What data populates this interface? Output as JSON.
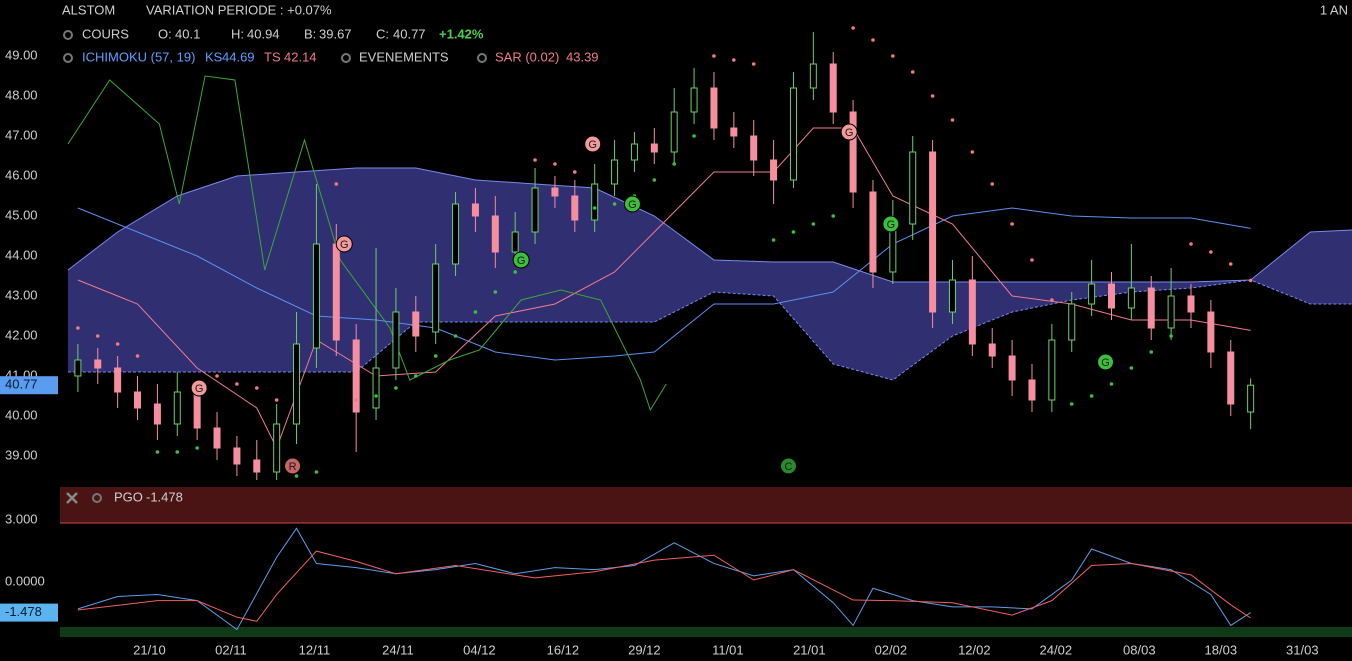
{
  "header": {
    "name": "ALSTOM",
    "variation": "VARIATION PERIODE : +0.07%",
    "period": "1 AN",
    "cours": "COURS",
    "o": "O:",
    "h": "H:",
    "b": "B:",
    "c": "C:",
    "change": "+1.42%",
    "ichimoku": "ICHIMOKU (57, 19)",
    "ks": "KS",
    "ts": "TS",
    "events": "EVENEMENTS",
    "sar": "SAR (0.02)"
  },
  "chart_data": [
    {
      "type": "candlestick",
      "xlim": [
        -0.9,
        64.1
      ],
      "ylim": [
        38.275,
        50.4
      ],
      "yticks": [
        {
          "value": 49,
          "label": "49.00"
        },
        {
          "value": 48,
          "label": "48.00"
        },
        {
          "value": 47,
          "label": "47.00"
        },
        {
          "value": 46,
          "label": "46.00"
        },
        {
          "value": 45,
          "label": "45.00"
        },
        {
          "value": 44,
          "label": "44.00"
        },
        {
          "value": 43,
          "label": "43.00"
        },
        {
          "value": 42,
          "label": "42.00"
        },
        {
          "value": 41,
          "label": "41.00"
        },
        {
          "value": 40,
          "label": "40.00"
        },
        {
          "value": 39,
          "label": "39.00"
        }
      ],
      "up_color": "#6ccf6c",
      "down_color": "#f58fa0",
      "open": [
        41.0,
        41.4,
        41.2,
        40.6,
        40.3,
        39.8,
        40.6,
        39.7,
        39.2,
        38.9,
        38.6,
        39.8,
        41.7,
        44.3,
        41.9,
        40.2,
        41.2,
        42.6,
        42.1,
        43.8,
        45.3,
        45.0,
        44.1,
        44.6,
        45.7,
        45.5,
        44.9,
        45.8,
        46.4,
        46.8,
        46.6,
        47.6,
        48.2,
        47.2,
        47.0,
        46.4,
        45.9,
        48.2,
        48.8,
        47.6,
        45.6,
        43.6,
        44.8,
        46.6,
        42.6,
        43.4,
        41.8,
        41.5,
        40.9,
        40.4,
        41.9,
        42.8,
        43.3,
        42.7,
        43.2,
        42.2,
        43.0,
        42.6,
        41.6,
        40.1
      ],
      "high": [
        41.8,
        41.7,
        41.5,
        41.0,
        40.8,
        41.1,
        40.9,
        40.1,
        39.5,
        39.4,
        40.3,
        42.6,
        45.8,
        44.8,
        42.3,
        44.2,
        43.2,
        43.0,
        44.3,
        45.6,
        45.7,
        45.5,
        45.1,
        46.2,
        46.0,
        45.9,
        46.3,
        46.9,
        47.1,
        47.2,
        48.2,
        48.7,
        48.6,
        47.6,
        47.4,
        46.9,
        48.6,
        49.6,
        49.1,
        47.9,
        45.9,
        45.4,
        47.0,
        46.9,
        43.9,
        44.0,
        42.2,
        41.9,
        41.3,
        42.3,
        43.1,
        43.9,
        43.6,
        44.3,
        43.5,
        43.7,
        43.3,
        42.9,
        41.9,
        40.94
      ],
      "low": [
        40.6,
        40.8,
        40.2,
        39.9,
        39.4,
        39.5,
        39.4,
        38.9,
        38.5,
        38.4,
        38.4,
        39.3,
        41.2,
        41.5,
        39.1,
        39.9,
        40.9,
        41.6,
        41.8,
        43.5,
        44.6,
        43.7,
        43.8,
        44.3,
        45.2,
        44.6,
        44.6,
        45.5,
        46.1,
        46.3,
        46.3,
        47.3,
        46.9,
        46.7,
        46.0,
        45.3,
        45.7,
        47.9,
        47.3,
        45.2,
        43.2,
        43.3,
        44.4,
        42.2,
        42.3,
        41.5,
        41.2,
        40.5,
        40.1,
        40.1,
        41.6,
        42.5,
        42.4,
        42.4,
        41.9,
        41.9,
        42.2,
        41.2,
        40.0,
        39.67
      ],
      "close": [
        41.4,
        41.2,
        40.6,
        40.2,
        39.8,
        40.6,
        39.7,
        39.2,
        38.8,
        38.6,
        39.8,
        41.8,
        44.3,
        41.9,
        40.1,
        41.2,
        42.6,
        42.0,
        43.8,
        45.3,
        45.0,
        44.1,
        44.6,
        45.7,
        45.5,
        44.9,
        45.8,
        46.4,
        46.8,
        46.6,
        47.6,
        48.2,
        47.2,
        47.0,
        46.4,
        45.9,
        48.2,
        48.8,
        47.6,
        45.6,
        43.6,
        44.8,
        46.6,
        42.6,
        43.4,
        41.8,
        41.5,
        40.9,
        40.4,
        41.9,
        42.8,
        43.3,
        42.7,
        43.2,
        42.2,
        43.0,
        42.6,
        41.6,
        40.3,
        40.77
      ],
      "cloud": {
        "color": "#34347e",
        "edge_color": "#7a8ae8",
        "x": [
          -0.5,
          2,
          5,
          8,
          11,
          14,
          17,
          20,
          23,
          26,
          29,
          32,
          35,
          38,
          41,
          44,
          47,
          50,
          53,
          56,
          59,
          62,
          64.1
        ],
        "span_a": [
          43.65,
          44.6,
          45.5,
          46.0,
          46.1,
          46.2,
          46.2,
          45.9,
          45.8,
          45.7,
          45.0,
          43.9,
          43.85,
          43.85,
          43.35,
          43.35,
          43.35,
          43.35,
          43.35,
          43.35,
          43.4,
          44.6,
          44.65
        ],
        "span_b": [
          41.1,
          41.1,
          41.1,
          41.1,
          41.1,
          41.1,
          42.35,
          42.35,
          42.35,
          42.35,
          42.35,
          43.1,
          43.0,
          41.3,
          40.9,
          42.0,
          42.6,
          42.9,
          43.1,
          43.2,
          43.4,
          42.8,
          42.8
        ]
      },
      "kijun": {
        "color": "#5c8ff0",
        "x": [
          0,
          3,
          6,
          9,
          12,
          15,
          18,
          21,
          24,
          27,
          29,
          32,
          35,
          38,
          41,
          44,
          47,
          50,
          53,
          56,
          59
        ],
        "values": [
          45.2,
          44.6,
          44.0,
          43.2,
          42.5,
          42.4,
          42.2,
          41.6,
          41.4,
          41.5,
          41.6,
          42.8,
          42.8,
          43.1,
          44.3,
          45.0,
          45.2,
          45.0,
          44.95,
          44.95,
          44.69
        ]
      },
      "tenkan": {
        "color": "#f07a90",
        "x": [
          0,
          3,
          6,
          9,
          10,
          12,
          15,
          18,
          21,
          24,
          27,
          29,
          32,
          35,
          37,
          39,
          41,
          44,
          47,
          50,
          53,
          56,
          59
        ],
        "values": [
          43.4,
          42.8,
          41.2,
          40.2,
          39.2,
          41.9,
          41.0,
          41.1,
          42.5,
          42.8,
          43.6,
          44.6,
          46.1,
          46.1,
          47.2,
          47.2,
          45.5,
          44.8,
          43.0,
          42.8,
          42.4,
          42.4,
          42.14
        ]
      },
      "chikou": {
        "color": "#3aa83a",
        "x": [
          -0.5,
          1.6,
          4.1,
          5.1,
          6.4,
          7.9,
          9.4,
          11.4,
          13.2,
          15.7,
          16.7,
          18.7,
          20.2,
          22.3,
          24.3,
          26.3,
          28.3,
          28.8,
          29.6
        ],
        "values": [
          46.8,
          48.4,
          47.3,
          45.3,
          48.5,
          48.4,
          43.65,
          46.9,
          43.9,
          42.2,
          40.9,
          41.4,
          41.65,
          42.9,
          43.15,
          42.9,
          40.9,
          40.15,
          40.8
        ]
      },
      "sar": {
        "up_color": "#3cc03c",
        "down_color": "#f07a80",
        "values": [
          42.2,
          42.0,
          41.8,
          41.5,
          39.1,
          39.1,
          39.2,
          41.0,
          40.8,
          40.7,
          40.4,
          38.5,
          38.6,
          45.8,
          40.4,
          40.5,
          40.7,
          41.0,
          41.5,
          42.0,
          42.6,
          43.1,
          43.6,
          46.4,
          46.3,
          46.1,
          45.2,
          45.3,
          45.5,
          45.9,
          46.3,
          47.0,
          49.0,
          48.9,
          48.8,
          44.4,
          44.6,
          44.8,
          45.0,
          49.7,
          49.4,
          49.0,
          48.6,
          48.0,
          47.4,
          46.6,
          45.8,
          44.8,
          43.9,
          42.9,
          40.3,
          40.5,
          40.8,
          41.2,
          41.6,
          42.0,
          44.3,
          44.1,
          43.8,
          43.39
        ]
      },
      "annotations": [
        {
          "label": "G",
          "x": 6.1,
          "y": 40.7,
          "color": "#f59a9a"
        },
        {
          "label": "G",
          "x": 13.4,
          "y": 44.3,
          "color": "#f59a9a"
        },
        {
          "label": "G",
          "x": 22.3,
          "y": 43.9,
          "color": "#3cc03c"
        },
        {
          "label": "G",
          "x": 25.9,
          "y": 46.8,
          "color": "#f59a9a"
        },
        {
          "label": "G",
          "x": 27.9,
          "y": 45.3,
          "color": "#3cc03c"
        },
        {
          "label": "G",
          "x": 38.8,
          "y": 47.1,
          "color": "#f59a9a"
        },
        {
          "label": "G",
          "x": 40.9,
          "y": 44.8,
          "color": "#3cc03c"
        },
        {
          "label": "G",
          "x": 51.7,
          "y": 41.35,
          "color": "#3cc03c"
        },
        {
          "label": "R",
          "x": 10.8,
          "y": 38.75,
          "color": "#c86464"
        },
        {
          "label": "C",
          "x": 35.75,
          "y": 38.75,
          "color": "#2a8a2a"
        }
      ]
    },
    {
      "type": "line",
      "title": "PGO",
      "xlim": [
        -0.9,
        64.1
      ],
      "ylim": [
        -2.66,
        3.15
      ],
      "yticks": [
        {
          "value": 3,
          "label": "3.000"
        },
        {
          "value": 0,
          "label": "0.0000"
        }
      ],
      "xticks": [
        {
          "value": 3.6,
          "label": "21/10"
        },
        {
          "value": 7.7,
          "label": "02/11"
        },
        {
          "value": 11.9,
          "label": "12/11"
        },
        {
          "value": 16.1,
          "label": "24/11"
        },
        {
          "value": 20.2,
          "label": "04/12"
        },
        {
          "value": 24.4,
          "label": "16/12"
        },
        {
          "value": 28.5,
          "label": "29/12"
        },
        {
          "value": 32.7,
          "label": "11/01"
        },
        {
          "value": 36.8,
          "label": "21/01"
        },
        {
          "value": 40.9,
          "label": "02/02"
        },
        {
          "value": 45.1,
          "label": "12/02"
        },
        {
          "value": 49.2,
          "label": "24/02"
        },
        {
          "value": 53.4,
          "label": "08/03"
        },
        {
          "value": 57.5,
          "label": "18/03"
        },
        {
          "value": 61.6,
          "label": "31/03"
        }
      ],
      "series": [
        {
          "color": "#5aa0e6",
          "x": [
            0,
            2,
            4,
            6,
            8,
            10,
            11,
            12,
            14,
            16,
            18,
            20,
            22,
            24,
            26,
            28,
            30,
            32,
            34,
            36,
            38,
            39,
            40,
            42,
            44,
            46,
            48,
            50,
            51,
            53,
            55,
            57,
            58,
            59
          ],
          "values": [
            -1.3,
            -0.7,
            -0.6,
            -0.9,
            -2.3,
            1.2,
            2.6,
            0.9,
            0.7,
            0.4,
            0.6,
            0.9,
            0.4,
            0.7,
            0.6,
            0.8,
            1.9,
            0.9,
            0.3,
            0.6,
            -1.0,
            -2.1,
            -0.3,
            -0.9,
            -1.2,
            -1.2,
            -1.3,
            0.1,
            1.6,
            0.9,
            0.6,
            -0.6,
            -2.1,
            -1.478
          ]
        },
        {
          "color": "#f06060",
          "x": [
            0,
            4,
            6,
            8,
            9,
            10,
            12,
            14,
            16,
            19,
            23,
            26,
            29,
            32,
            34,
            36,
            39,
            41,
            44,
            47,
            49,
            51,
            53,
            56,
            58,
            59
          ],
          "values": [
            -1.35,
            -0.9,
            -0.9,
            -1.7,
            -1.9,
            -0.6,
            1.5,
            1.0,
            0.4,
            0.8,
            0.2,
            0.5,
            1.06,
            1.3,
            0.1,
            0.6,
            -0.87,
            -0.9,
            -1.0,
            -1.6,
            -0.9,
            0.8,
            0.9,
            0.35,
            -1.1,
            -1.74
          ]
        }
      ]
    }
  ]
}
